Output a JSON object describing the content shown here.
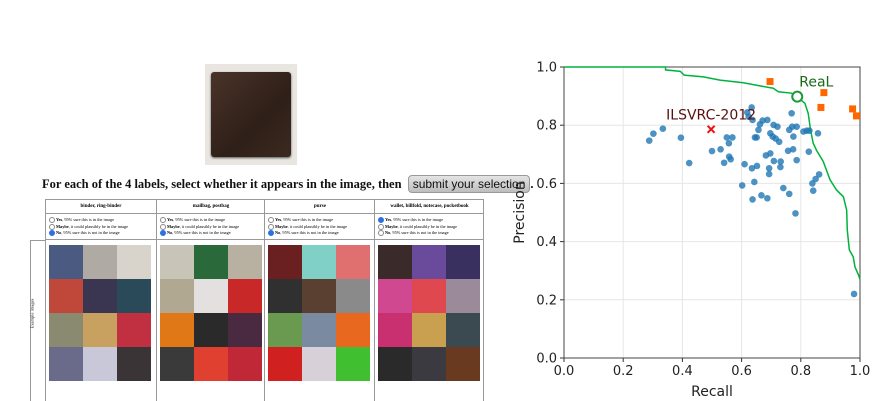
{
  "left_panel": {
    "query_image": "wallet-photo",
    "instruction": "For each of the 4 labels, select whether it appears in the image, then",
    "submit_label": "submit your selection",
    "instruction_end": ".",
    "side_label": "Example images",
    "options": [
      {
        "bold": "Yes",
        "rest": ", 95% sure this is in the image"
      },
      {
        "bold": "Maybe",
        "rest": ", it could plausibly be in the image"
      },
      {
        "bold": "No",
        "rest": ", 95% sure this is not in the image"
      }
    ],
    "columns": [
      {
        "label": "binder, ring-binder",
        "selected": 2,
        "thumbs": [
          "#4a5a80",
          "#b0aaa4",
          "#d8d4cc",
          "#c0483a",
          "#3a3550",
          "#2a4a5a",
          "#8a8a70",
          "#c8a060",
          "#c03040",
          "#6a6a8a",
          "#c8c8d8",
          "#3a3436"
        ]
      },
      {
        "label": "mailbag, postbag",
        "selected": 2,
        "thumbs": [
          "#c8c4b8",
          "#2a6a3a",
          "#b8b0a0",
          "#b0a890",
          "#e4e0e0",
          "#c82828",
          "#e07818",
          "#2a2a2a",
          "#4a2a40",
          "#3a3a3a",
          "#e04030",
          "#c02838"
        ]
      },
      {
        "label": "purse",
        "selected": 2,
        "thumbs": [
          "#6a2020",
          "#80d0c8",
          "#e07070",
          "#303030",
          "#5a4030",
          "#8a8a8a",
          "#6a9a50",
          "#7a8aa0",
          "#e86820",
          "#d02020",
          "#d8d0d8",
          "#40c030"
        ]
      },
      {
        "label": "wallet, billfold, notecase, pocketbook",
        "selected": 0,
        "thumbs": [
          "#3a2a2a",
          "#6a4a9a",
          "#3a3060",
          "#d04890",
          "#e04850",
          "#9a8a9a",
          "#c83070",
          "#c8a050",
          "#3a4a50",
          "#2a2a2a",
          "#3a3a40",
          "#6a3a20"
        ]
      }
    ]
  },
  "chart_data": {
    "type": "scatter",
    "xlabel": "Recall",
    "ylabel": "Precision",
    "xlim": [
      0,
      1
    ],
    "ylim": [
      0,
      1
    ],
    "xticks": [
      "0.0",
      "0.2",
      "0.4",
      "0.6",
      "0.8",
      "1.0"
    ],
    "yticks": [
      "0.0",
      "0.2",
      "0.4",
      "0.6",
      "0.8",
      "1.0"
    ],
    "grid": true,
    "colors": {
      "points": "#1f77b4",
      "curve": "#00b33c",
      "real": "#ff6600",
      "real_marker": "#1a9a3a",
      "ilsvrc": "#ee1111",
      "ilsvrc_label": "#5a1010",
      "real_label": "#1a6a1a"
    },
    "annotations": [
      {
        "text": "ReaL",
        "x": 0.788,
        "y": 0.898,
        "marker": "circle"
      },
      {
        "text": "ILSVRC-2012",
        "x": 0.497,
        "y": 0.786,
        "marker": "x"
      }
    ],
    "points": [
      [
        0.288,
        0.747
      ],
      [
        0.302,
        0.771
      ],
      [
        0.334,
        0.788
      ],
      [
        0.395,
        0.757
      ],
      [
        0.423,
        0.67
      ],
      [
        0.5,
        0.711
      ],
      [
        0.529,
        0.717
      ],
      [
        0.541,
        0.671
      ],
      [
        0.55,
        0.758
      ],
      [
        0.557,
        0.738
      ],
      [
        0.558,
        0.692
      ],
      [
        0.563,
        0.683
      ],
      [
        0.569,
        0.758
      ],
      [
        0.602,
        0.593
      ],
      [
        0.61,
        0.666
      ],
      [
        0.619,
        0.844
      ],
      [
        0.624,
        0.829
      ],
      [
        0.634,
        0.861
      ],
      [
        0.637,
        0.818
      ],
      [
        0.637,
        0.545
      ],
      [
        0.635,
        0.652
      ],
      [
        0.643,
        0.605
      ],
      [
        0.645,
        0.758
      ],
      [
        0.651,
        0.758
      ],
      [
        0.652,
        0.66
      ],
      [
        0.657,
        0.784
      ],
      [
        0.662,
        0.803
      ],
      [
        0.667,
        0.559
      ],
      [
        0.671,
        0.816
      ],
      [
        0.682,
        0.696
      ],
      [
        0.687,
        0.549
      ],
      [
        0.687,
        0.818
      ],
      [
        0.693,
        0.632
      ],
      [
        0.693,
        0.652
      ],
      [
        0.697,
        0.703
      ],
      [
        0.697,
        0.772
      ],
      [
        0.705,
        0.761
      ],
      [
        0.708,
        0.801
      ],
      [
        0.709,
        0.677
      ],
      [
        0.715,
        0.754
      ],
      [
        0.721,
        0.795
      ],
      [
        0.727,
        0.743
      ],
      [
        0.731,
        0.656
      ],
      [
        0.732,
        0.675
      ],
      [
        0.741,
        0.584
      ],
      [
        0.757,
        0.712
      ],
      [
        0.761,
        0.784
      ],
      [
        0.761,
        0.564
      ],
      [
        0.769,
        0.841
      ],
      [
        0.771,
        0.795
      ],
      [
        0.774,
        0.717
      ],
      [
        0.775,
        0.761
      ],
      [
        0.782,
        0.497
      ],
      [
        0.786,
        0.795
      ],
      [
        0.786,
        0.68
      ],
      [
        0.809,
        0.778
      ],
      [
        0.82,
        0.781
      ],
      [
        0.829,
        0.781
      ],
      [
        0.827,
        0.709
      ],
      [
        0.839,
        0.6
      ],
      [
        0.842,
        0.575
      ],
      [
        0.85,
        0.615
      ],
      [
        0.858,
        0.772
      ],
      [
        0.862,
        0.631
      ],
      [
        0.98,
        0.22
      ]
    ],
    "real_squares": [
      [
        0.696,
        0.95
      ],
      [
        0.878,
        0.912
      ],
      [
        0.868,
        0.861
      ],
      [
        0.975,
        0.856
      ],
      [
        0.988,
        0.832
      ]
    ],
    "curve": [
      [
        0.0,
        1.0
      ],
      [
        0.343,
        1.0
      ],
      [
        0.343,
        0.99
      ],
      [
        0.393,
        0.985
      ],
      [
        0.406,
        0.972
      ],
      [
        0.471,
        0.966
      ],
      [
        0.527,
        0.955
      ],
      [
        0.606,
        0.946
      ],
      [
        0.662,
        0.935
      ],
      [
        0.707,
        0.927
      ],
      [
        0.724,
        0.915
      ],
      [
        0.769,
        0.91
      ],
      [
        0.788,
        0.898
      ],
      [
        0.814,
        0.875
      ],
      [
        0.825,
        0.841
      ],
      [
        0.833,
        0.783
      ],
      [
        0.842,
        0.738
      ],
      [
        0.853,
        0.714
      ],
      [
        0.876,
        0.675
      ],
      [
        0.899,
        0.612
      ],
      [
        0.921,
        0.577
      ],
      [
        0.944,
        0.554
      ],
      [
        0.955,
        0.508
      ],
      [
        0.957,
        0.44
      ],
      [
        0.964,
        0.371
      ],
      [
        0.977,
        0.348
      ],
      [
        0.983,
        0.313
      ],
      [
        0.995,
        0.285
      ],
      [
        1.0,
        0.27
      ]
    ]
  }
}
